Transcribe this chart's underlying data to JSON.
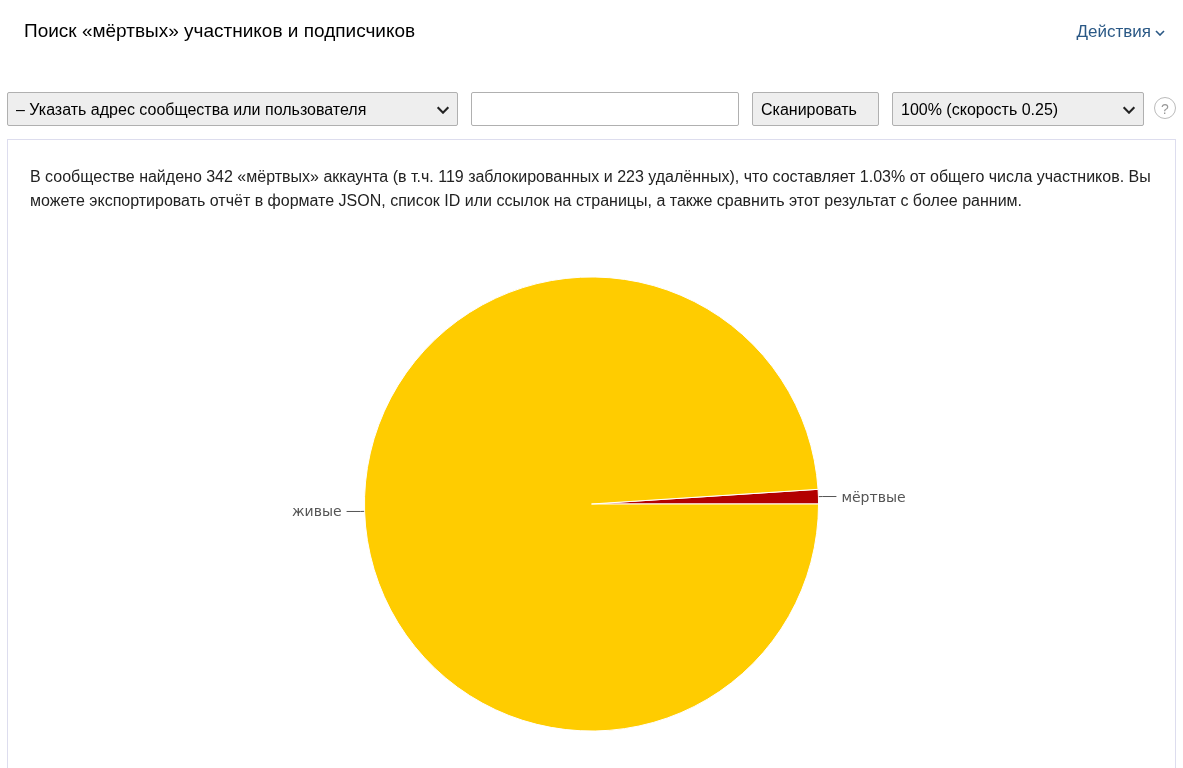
{
  "chart_data": {
    "type": "pie",
    "title": "Поиск «мёртвых» участников и подписчиков",
    "categories": [
      "мёртвые",
      "живые"
    ],
    "values": [
      1.03,
      98.97
    ],
    "colors": [
      "#b30000",
      "#ffcc00"
    ],
    "legend": false,
    "annotations": [
      "Действия",
      "– Указать адрес сообщества или пользователя",
      "Сканировать",
      "100% (скорость 0.25)",
      "?",
      "В сообществе найдено 342 «мёртвых» аккаунта (в т.ч. 119 заблокированных и 223 удалённых), что составляет 1.03% от общего числа участников. Вы можете экспортировать отчёт в формате JSON, список ID или ссылок на страницы, а также сравнить этот результат с более ранним."
    ]
  }
}
